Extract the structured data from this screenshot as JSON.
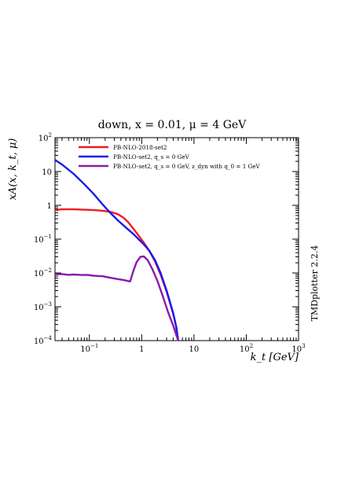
{
  "chart_data": {
    "type": "line",
    "title": "down, x = 0.01, μ = 4 GeV",
    "xlabel": "k_t [GeV]",
    "ylabel": "xA(x, k_t, μ)",
    "side_label": "TMDplotter 2.2.4",
    "x_scale": "log",
    "y_scale": "log",
    "xlim": [
      0.022,
      1000
    ],
    "ylim": [
      0.0001,
      100
    ],
    "grid": false,
    "legend_position": "top-left",
    "x_ticks": [
      {
        "value": 0.1,
        "label": "10⁻¹"
      },
      {
        "value": 1,
        "label": "1"
      },
      {
        "value": 10,
        "label": "10"
      },
      {
        "value": 100,
        "label": "10²"
      },
      {
        "value": 1000,
        "label": "10³"
      }
    ],
    "y_ticks": [
      {
        "value": 100,
        "label": "10²"
      },
      {
        "value": 10,
        "label": "10"
      },
      {
        "value": 1,
        "label": "1"
      },
      {
        "value": 0.1,
        "label": "10⁻¹"
      },
      {
        "value": 0.01,
        "label": "10⁻²"
      },
      {
        "value": 0.001,
        "label": "10⁻³"
      },
      {
        "value": 0.0001,
        "label": "10⁻⁴"
      }
    ],
    "series": [
      {
        "name": "PB-NLO-2018-set2",
        "color": "#ee1c24",
        "points": [
          [
            0.022,
            0.73
          ],
          [
            0.03,
            0.76
          ],
          [
            0.05,
            0.76
          ],
          [
            0.08,
            0.74
          ],
          [
            0.12,
            0.72
          ],
          [
            0.18,
            0.69
          ],
          [
            0.25,
            0.64
          ],
          [
            0.35,
            0.55
          ],
          [
            0.45,
            0.43
          ],
          [
            0.55,
            0.32
          ],
          [
            0.7,
            0.2
          ],
          [
            0.9,
            0.12
          ],
          [
            1.1,
            0.078
          ],
          [
            1.4,
            0.045
          ],
          [
            1.8,
            0.022
          ],
          [
            2.3,
            0.009
          ],
          [
            3,
            0.0028
          ],
          [
            4,
            0.00062
          ],
          [
            4.6,
            0.00025
          ],
          [
            5,
            0.0001
          ]
        ]
      },
      {
        "name": "PB-NLO-set2, q_s = 0 GeV",
        "color": "#1a1aee",
        "points": [
          [
            0.022,
            22
          ],
          [
            0.03,
            16
          ],
          [
            0.05,
            8.5
          ],
          [
            0.08,
            4.2
          ],
          [
            0.12,
            2.2
          ],
          [
            0.18,
            1.05
          ],
          [
            0.25,
            0.6
          ],
          [
            0.35,
            0.36
          ],
          [
            0.5,
            0.22
          ],
          [
            0.7,
            0.14
          ],
          [
            0.9,
            0.095
          ],
          [
            1.1,
            0.07
          ],
          [
            1.4,
            0.045
          ],
          [
            1.8,
            0.024
          ],
          [
            2.3,
            0.01
          ],
          [
            3,
            0.003
          ],
          [
            4,
            0.00065
          ],
          [
            4.6,
            0.00025
          ],
          [
            5,
            0.0001
          ]
        ]
      },
      {
        "name": "PB-NLO-set2, q_s = 0 GeV, z_dyn with q_0 = 1 GeV",
        "color": "#8a1aa8",
        "points": [
          [
            0.022,
            0.0092
          ],
          [
            0.03,
            0.0093
          ],
          [
            0.04,
            0.0088
          ],
          [
            0.05,
            0.009
          ],
          [
            0.07,
            0.0087
          ],
          [
            0.09,
            0.0088
          ],
          [
            0.12,
            0.0083
          ],
          [
            0.18,
            0.008
          ],
          [
            0.25,
            0.0072
          ],
          [
            0.35,
            0.0066
          ],
          [
            0.45,
            0.0062
          ],
          [
            0.6,
            0.0056
          ],
          [
            0.7,
            0.012
          ],
          [
            0.8,
            0.021
          ],
          [
            0.95,
            0.03
          ],
          [
            1.1,
            0.031
          ],
          [
            1.3,
            0.024
          ],
          [
            1.6,
            0.013
          ],
          [
            2,
            0.0058
          ],
          [
            2.5,
            0.0022
          ],
          [
            3.2,
            0.0007
          ],
          [
            4,
            0.00028
          ],
          [
            5,
            0.0001
          ]
        ]
      }
    ]
  }
}
